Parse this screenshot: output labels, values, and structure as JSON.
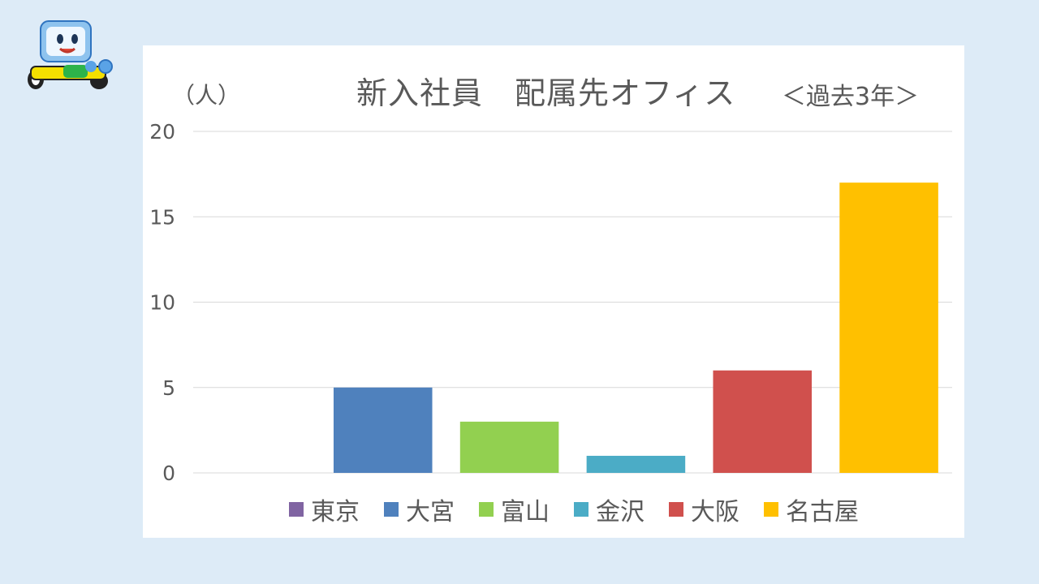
{
  "page": {
    "background": "#ddebf7",
    "mascot_icon": "blue-robot-mascot"
  },
  "chart_data": {
    "type": "bar",
    "title": "新入社員　配属先オフィス",
    "subtitle": "＜過去3年＞",
    "ylabel": "（人）",
    "xlabel": "",
    "categories": [
      "東京",
      "大宮",
      "富山",
      "金沢",
      "大阪",
      "名古屋"
    ],
    "values": [
      0,
      5,
      3,
      1,
      6,
      17
    ],
    "colors": [
      "#8064a2",
      "#4f81bd",
      "#92d050",
      "#4bacc6",
      "#d0504d",
      "#ffc000"
    ],
    "ylim": [
      0,
      20
    ],
    "yticks": [
      "0",
      "5",
      "10",
      "15",
      "20"
    ],
    "grid": true,
    "legend_position": "bottom"
  }
}
